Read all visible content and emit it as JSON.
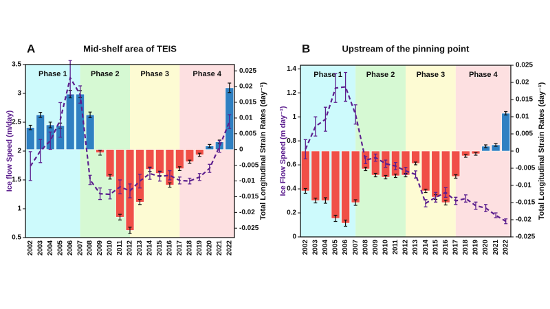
{
  "chart_data": [
    {
      "type": "combo",
      "panel_label": "A",
      "title": "Mid-shelf area of TEIS",
      "ylabel": "Ice flow Speed (m/day)",
      "y2label": "Total Longitudinal Strain Rates (day⁻¹)",
      "categories": [
        "2002",
        "2003",
        "2004",
        "2005",
        "2006",
        "2007",
        "2008",
        "2009",
        "2010",
        "2011",
        "2012",
        "2013",
        "2014",
        "2015",
        "2016",
        "2017",
        "2018",
        "2019",
        "2020",
        "2021",
        "2022"
      ],
      "ylim": [
        0.5,
        3.5
      ],
      "yticks": [
        0.5,
        1,
        1.5,
        2,
        2.5,
        3,
        3.5
      ],
      "y2lim": [
        -0.028,
        0.027
      ],
      "y2ticks": [
        -0.025,
        -0.02,
        -0.015,
        -0.01,
        -0.005,
        0,
        0.005,
        0.01,
        0.015,
        0.02,
        0.025
      ],
      "phases": [
        {
          "label": "Phase 1",
          "from": "2002",
          "to": "2007",
          "color": "#cdfafc"
        },
        {
          "label": "Phase 2",
          "from": "2007",
          "to": "2012",
          "color": "#d6f9d3"
        },
        {
          "label": "Phase 3",
          "from": "2012",
          "to": "2017",
          "color": "#fdfbd3"
        },
        {
          "label": "Phase 4",
          "from": "2017",
          "to": "2022",
          "color": "#fde0e1"
        }
      ],
      "series": [
        {
          "type": "bar",
          "axis": "y2",
          "positive_color": "#2f80c2",
          "negative_color": "#f04f47",
          "values": [
            0.007,
            0.011,
            0.0078,
            0.0076,
            0.0176,
            0.0176,
            0.011,
            -0.001,
            -0.0087,
            -0.0215,
            -0.0257,
            -0.0167,
            -0.0063,
            -0.0076,
            -0.0113,
            -0.0061,
            -0.0039,
            -0.0017,
            0.0011,
            0.0024,
            0.0196
          ],
          "errors": [
            0.0007,
            0.0008,
            0.0009,
            0.0008,
            0.0012,
            0.0011,
            0.0009,
            0.0008,
            0.0007,
            0.0009,
            0.001,
            0.0008,
            0.0007,
            0.0007,
            0.0007,
            0.0006,
            0.0005,
            0.0005,
            0.0005,
            0.0006,
            0.0015
          ]
        },
        {
          "type": "line",
          "axis": "y",
          "color": "#5c1f8e",
          "values": [
            1.74,
            2.0,
            2.18,
            2.54,
            3.27,
            2.98,
            1.5,
            1.26,
            1.25,
            1.38,
            1.31,
            1.48,
            1.61,
            1.56,
            1.58,
            1.49,
            1.48,
            1.55,
            1.7,
            2.08,
            2.51
          ],
          "errors": [
            0.25,
            0.2,
            0.15,
            0.3,
            0.3,
            0.15,
            0.08,
            0.1,
            0.08,
            0.12,
            0.12,
            0.12,
            0.1,
            0.08,
            0.08,
            0.06,
            0.05,
            0.06,
            0.07,
            0.1,
            0.12
          ]
        }
      ]
    },
    {
      "type": "combo",
      "panel_label": "B",
      "title": "Upstream of the pinning point",
      "ylabel": "Ice Flow Speed (m day⁻¹)",
      "y2label": "Total Longitudinal Strain Rates (day⁻¹)",
      "categories": [
        "2002",
        "2003",
        "2004",
        "2005",
        "2006",
        "2007",
        "2008",
        "2009",
        "2010",
        "2011",
        "2012",
        "2013",
        "2014",
        "2015",
        "2016",
        "2017",
        "2018",
        "2019",
        "2020",
        "2021",
        "2022"
      ],
      "ylim": [
        0,
        1.43
      ],
      "yticks": [
        0,
        0.2,
        0.4,
        0.6,
        0.8,
        1,
        1.2,
        1.4
      ],
      "y2lim": [
        -0.025,
        0.025
      ],
      "y2ticks": [
        -0.025,
        -0.02,
        -0.015,
        -0.01,
        -0.005,
        0,
        0.005,
        0.01,
        0.015,
        0.02,
        0.025
      ],
      "phases": [
        {
          "label": "Phase 1",
          "from": "2002",
          "to": "2007",
          "color": "#cdfafc"
        },
        {
          "label": "Phase 2",
          "from": "2007",
          "to": "2012",
          "color": "#d6f9d3"
        },
        {
          "label": "Phase 3",
          "from": "2012",
          "to": "2017",
          "color": "#fdfbd3"
        },
        {
          "label": "Phase 4",
          "from": "2017",
          "to": "2022",
          "color": "#fde0e1"
        }
      ],
      "series": [
        {
          "type": "bar",
          "axis": "y2",
          "positive_color": "#2f80c2",
          "negative_color": "#f04f47",
          "values": [
            -0.0116,
            -0.0144,
            -0.0144,
            -0.0196,
            -0.021,
            -0.015,
            -0.0052,
            -0.007,
            -0.0076,
            -0.0072,
            -0.007,
            -0.0036,
            -0.0116,
            -0.0134,
            -0.015,
            -0.0074,
            -0.0014,
            -0.0008,
            0.0014,
            0.0018,
            0.011
          ],
          "errors": [
            0.0007,
            0.0007,
            0.0008,
            0.0009,
            0.0009,
            0.0008,
            0.0005,
            0.0005,
            0.0005,
            0.0005,
            0.0005,
            0.0004,
            0.0005,
            0.0007,
            0.0007,
            0.0005,
            0.0004,
            0.0004,
            0.0004,
            0.0004,
            0.0005
          ]
        },
        {
          "type": "line",
          "axis": "y",
          "color": "#5c1f8e",
          "values": [
            0.73,
            0.92,
            0.98,
            1.24,
            1.25,
            1.02,
            0.64,
            0.66,
            0.61,
            0.59,
            0.55,
            0.52,
            0.28,
            0.33,
            0.37,
            0.3,
            0.32,
            0.26,
            0.24,
            0.18,
            0.13
          ],
          "errors": [
            0.08,
            0.08,
            0.1,
            0.12,
            0.12,
            0.08,
            0.03,
            0.03,
            0.03,
            0.03,
            0.03,
            0.03,
            0.03,
            0.04,
            0.04,
            0.03,
            0.03,
            0.03,
            0.03,
            0.02,
            0.02
          ]
        }
      ]
    }
  ]
}
